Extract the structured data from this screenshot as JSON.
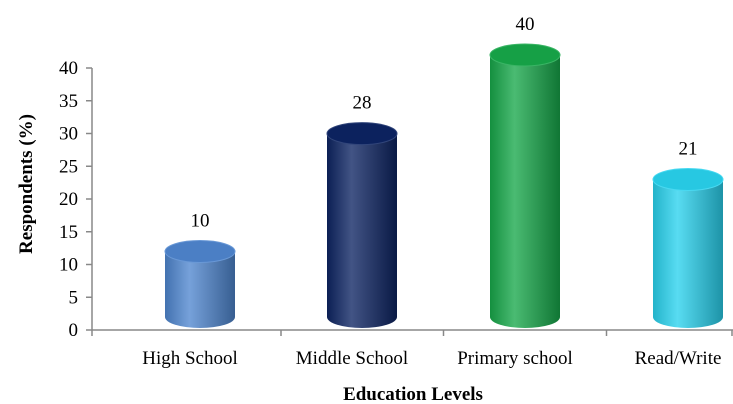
{
  "chart_data": {
    "type": "bar",
    "categories": [
      "High School",
      "Middle School",
      "Primary school",
      "Read/Write"
    ],
    "values": [
      10,
      28,
      40,
      21
    ],
    "data_labels": [
      "10",
      "28",
      "40",
      "21"
    ],
    "xlabel": "Education Levels",
    "ylabel": "Respondents (%)",
    "ylim": [
      0,
      40
    ],
    "yticks": [
      "0",
      "5",
      "10",
      "15",
      "20",
      "25",
      "30",
      "35",
      "40"
    ],
    "grid": false,
    "legend": "none",
    "bar_style": "3d-cylinder",
    "colors": [
      "#4f86cf",
      "#0d2463",
      "#17a84a",
      "#29d2ee"
    ]
  }
}
